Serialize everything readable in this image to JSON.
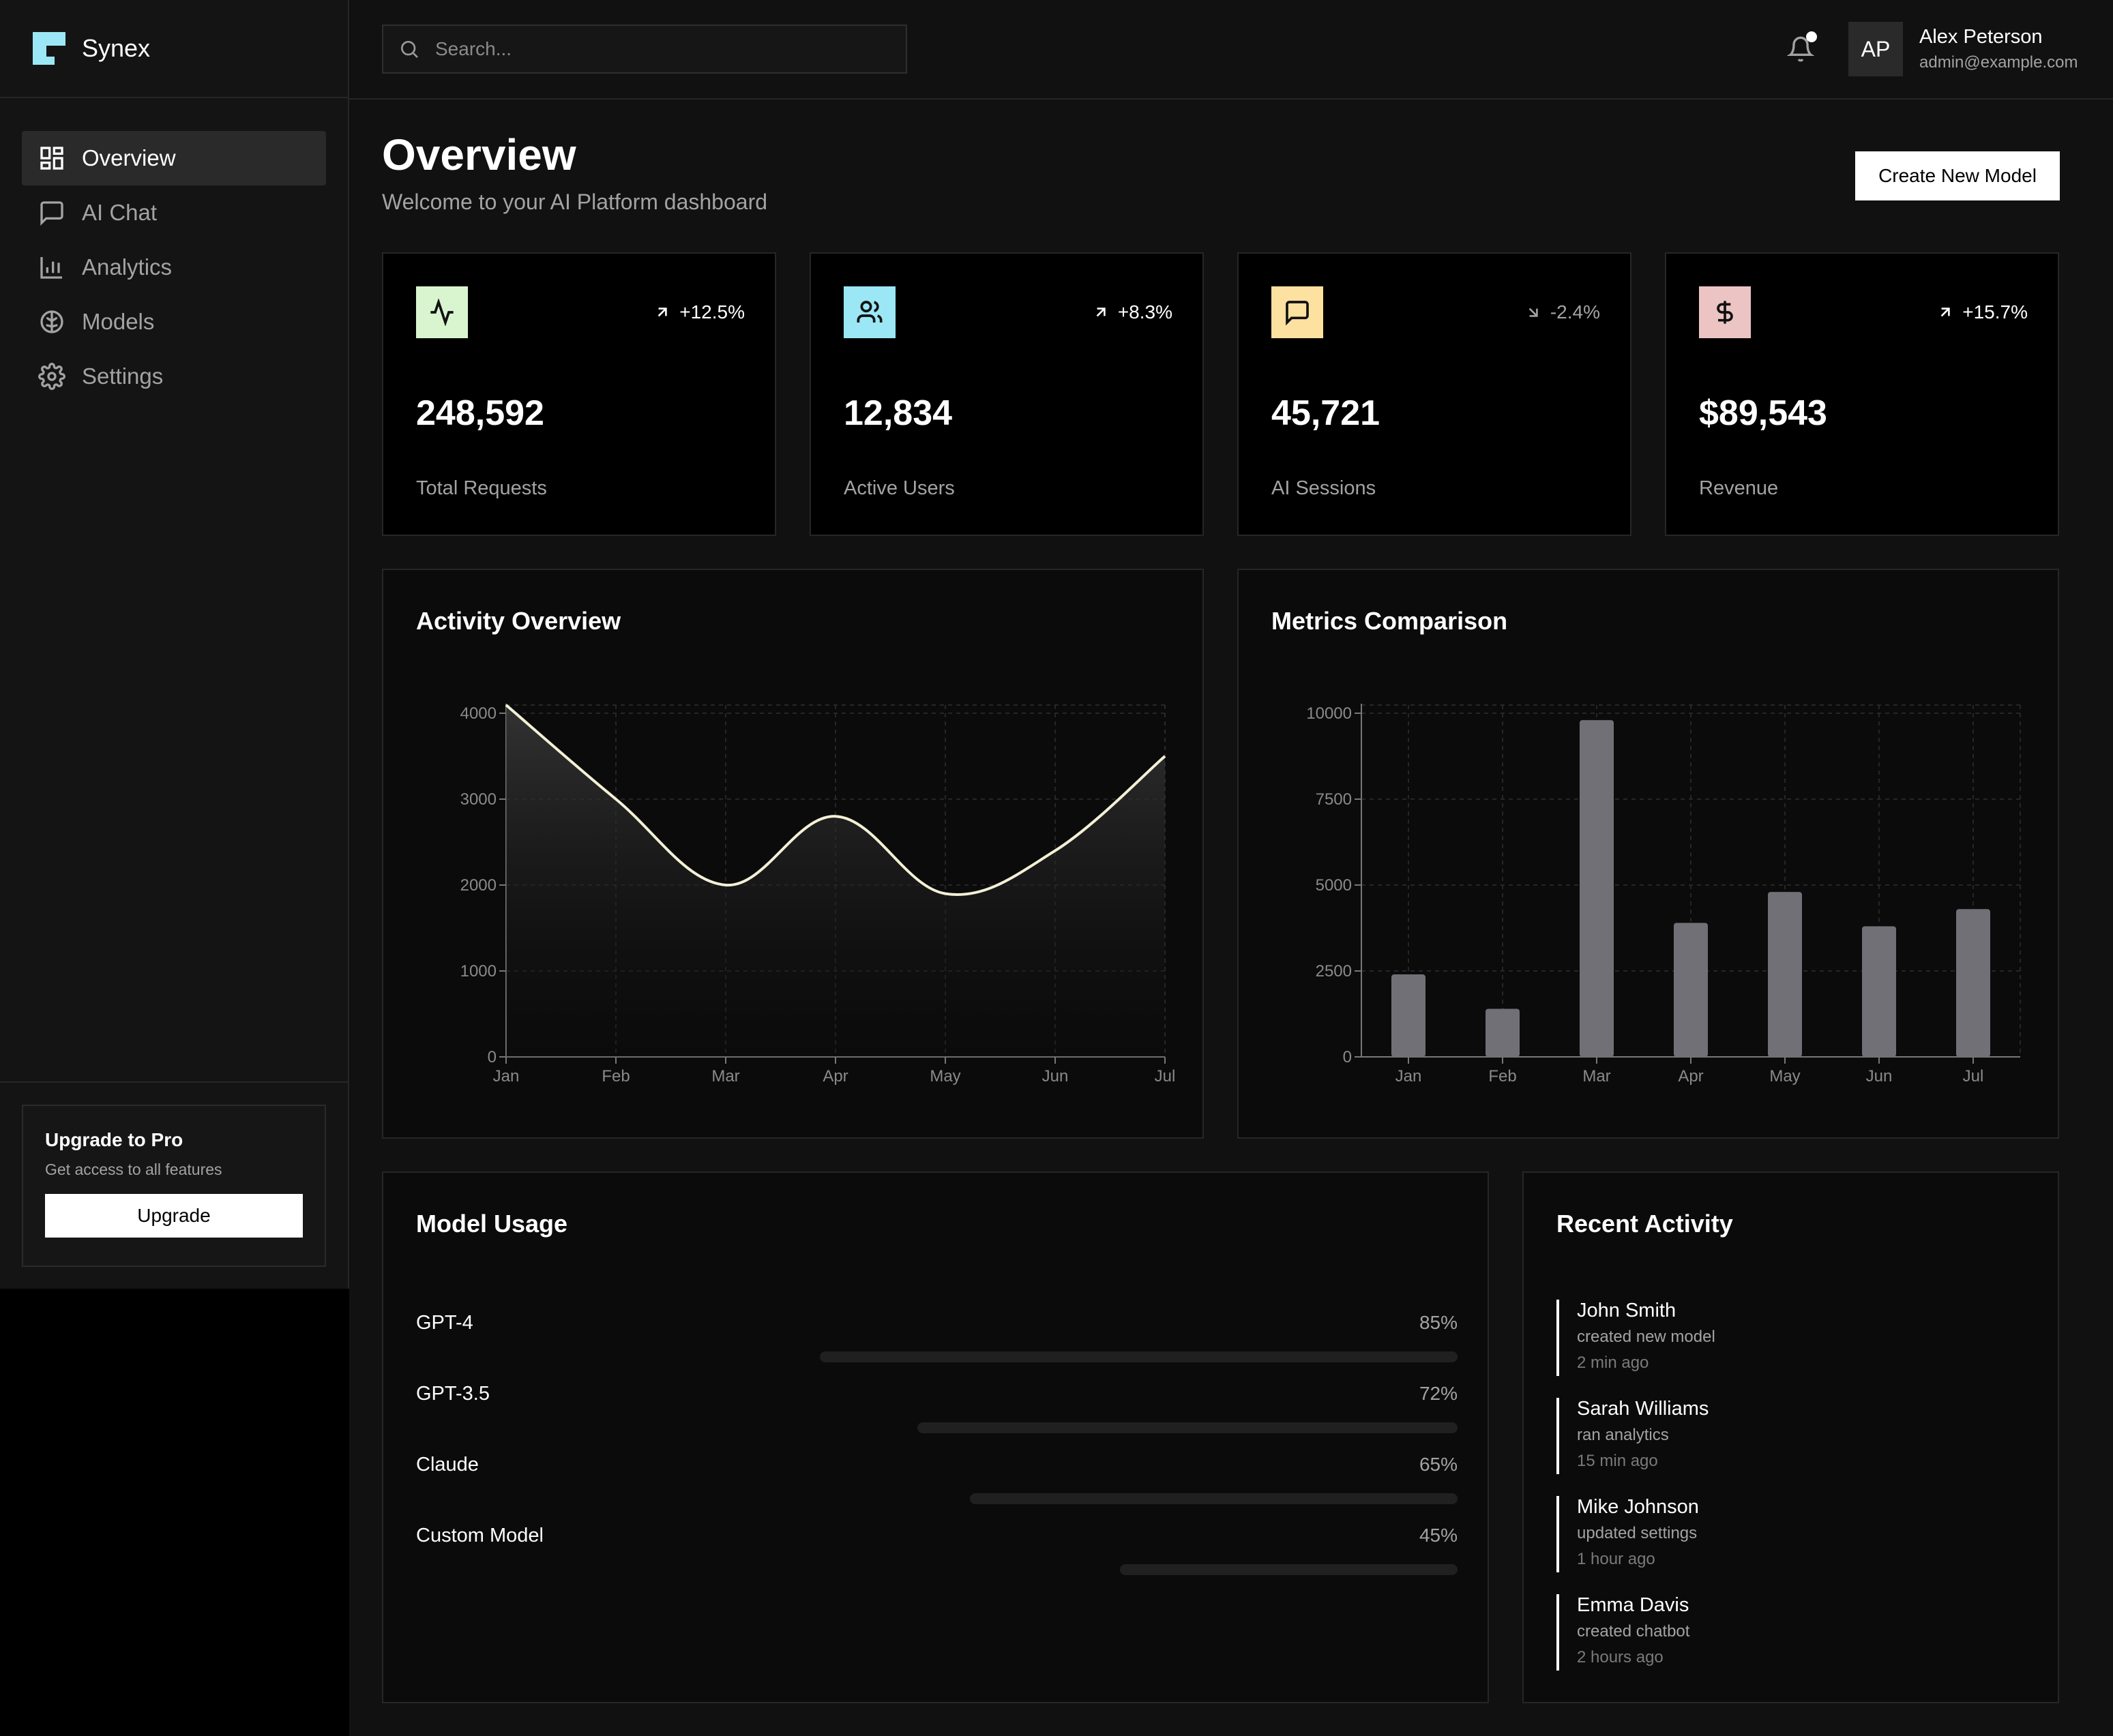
{
  "brand": {
    "name": "Synex"
  },
  "sidebar": {
    "items": [
      {
        "label": "Overview",
        "icon": "layout-grid-icon",
        "active": true
      },
      {
        "label": "AI Chat",
        "icon": "message-square-icon",
        "active": false
      },
      {
        "label": "Analytics",
        "icon": "bar-chart-icon",
        "active": false
      },
      {
        "label": "Models",
        "icon": "brain-icon",
        "active": false
      },
      {
        "label": "Settings",
        "icon": "gear-icon",
        "active": false
      }
    ],
    "upgrade": {
      "title": "Upgrade to Pro",
      "subtitle": "Get access to all features",
      "button": "Upgrade"
    }
  },
  "header": {
    "search_placeholder": "Search...",
    "user": {
      "initials": "AP",
      "name": "Alex Peterson",
      "email": "admin@example.com"
    }
  },
  "page": {
    "title": "Overview",
    "subtitle": "Welcome to your AI Platform dashboard",
    "create_button": "Create New Model"
  },
  "stats": [
    {
      "icon": "activity-icon",
      "icon_bg": "#d9f5d0",
      "change": "+12.5%",
      "direction": "up",
      "value": "248,592",
      "label": "Total Requests"
    },
    {
      "icon": "users-icon",
      "icon_bg": "#9be7f5",
      "change": "+8.3%",
      "direction": "up",
      "value": "12,834",
      "label": "Active Users"
    },
    {
      "icon": "message-square-icon",
      "icon_bg": "#fde1a0",
      "change": "-2.4%",
      "direction": "down",
      "value": "45,721",
      "label": "AI Sessions"
    },
    {
      "icon": "dollar-icon",
      "icon_bg": "#ecc4c4",
      "change": "+15.7%",
      "direction": "up",
      "value": "$89,543",
      "label": "Revenue"
    }
  ],
  "activity_chart": {
    "title": "Activity Overview",
    "chart_data": {
      "type": "area",
      "categories": [
        "Jan",
        "Feb",
        "Mar",
        "Apr",
        "May",
        "Jun",
        "Jul"
      ],
      "values": [
        4100,
        3000,
        2000,
        2800,
        1900,
        2400,
        3500
      ],
      "yticks": [
        0,
        1000,
        2000,
        3000,
        4000
      ],
      "ylim": [
        0,
        4000
      ],
      "grid": true
    }
  },
  "metrics_chart": {
    "title": "Metrics Comparison",
    "chart_data": {
      "type": "bar",
      "categories": [
        "Jan",
        "Feb",
        "Mar",
        "Apr",
        "May",
        "Jun",
        "Jul"
      ],
      "values": [
        2400,
        1400,
        9800,
        3900,
        4800,
        3800,
        4300
      ],
      "yticks": [
        0,
        2500,
        5000,
        7500,
        10000
      ],
      "ylim": [
        0,
        10000
      ],
      "grid": true
    }
  },
  "model_usage": {
    "title": "Model Usage",
    "items": [
      {
        "name": "GPT-4",
        "percent": 85,
        "percent_label": "85%"
      },
      {
        "name": "GPT-3.5",
        "percent": 72,
        "percent_label": "72%"
      },
      {
        "name": "Claude",
        "percent": 65,
        "percent_label": "65%"
      },
      {
        "name": "Custom Model",
        "percent": 45,
        "percent_label": "45%"
      }
    ]
  },
  "recent_activity": {
    "title": "Recent Activity",
    "items": [
      {
        "name": "John Smith",
        "action": "created new model",
        "time": "2 min ago"
      },
      {
        "name": "Sarah Williams",
        "action": "ran analytics",
        "time": "15 min ago"
      },
      {
        "name": "Mike Johnson",
        "action": "updated settings",
        "time": "1 hour ago"
      },
      {
        "name": "Emma Davis",
        "action": "created chatbot",
        "time": "2 hours ago"
      }
    ]
  }
}
